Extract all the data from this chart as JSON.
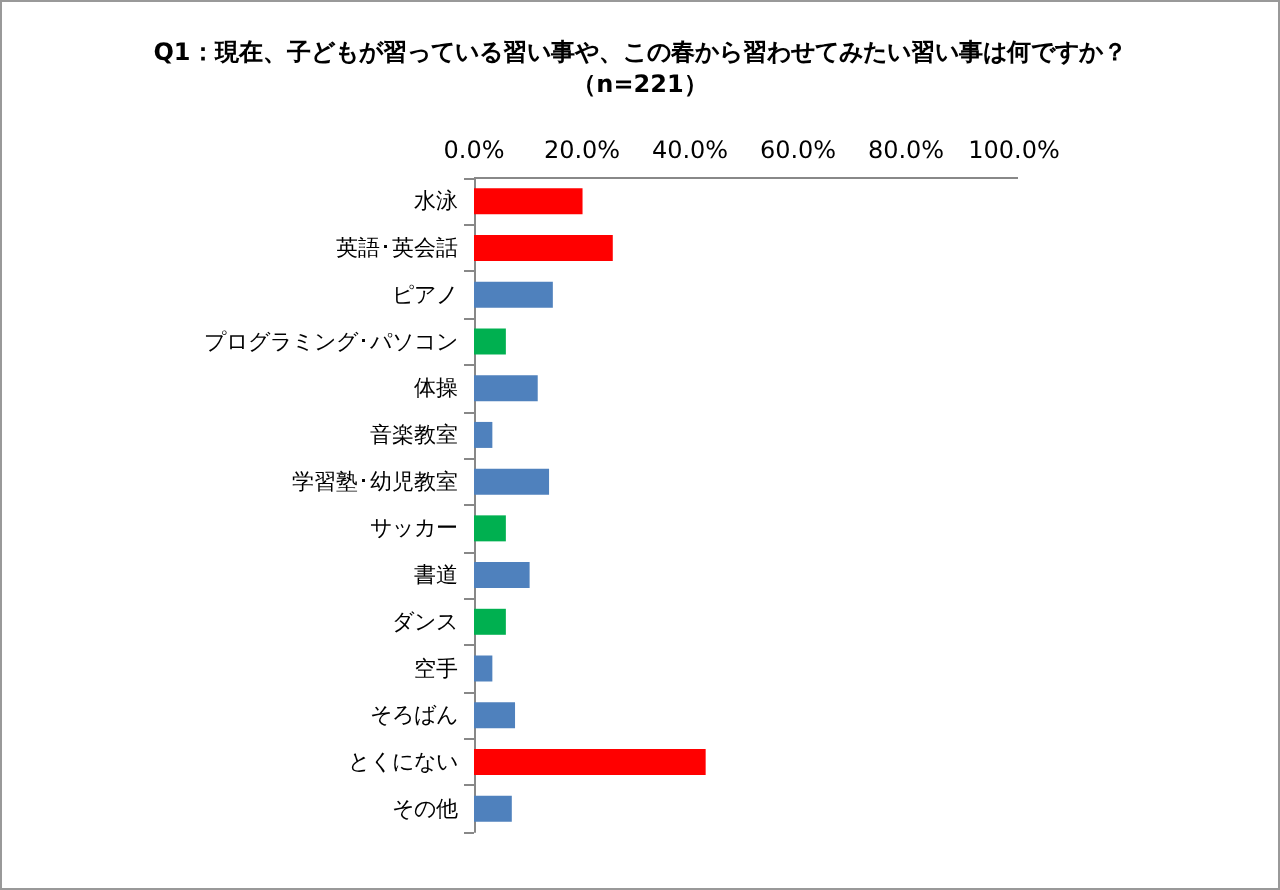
{
  "chart_data": {
    "type": "bar",
    "orientation": "horizontal",
    "title": "Q1：現在、子どもが習っている習い事や、この春から習わせてみたい習い事は何ですか？",
    "subtitle": "（n=221）",
    "categories": [
      "水泳",
      "英語･英会話",
      "ピアノ",
      "プログラミング･パソコン",
      "体操",
      "音楽教室",
      "学習塾･幼児教室",
      "サッカー",
      "書道",
      "ダンス",
      "空手",
      "そろばん",
      "とくにない",
      "その他"
    ],
    "values": [
      20.1,
      25.7,
      14.6,
      5.9,
      11.8,
      3.4,
      13.9,
      5.9,
      10.3,
      5.9,
      3.4,
      7.6,
      42.9,
      7.0
    ],
    "colors": [
      "#ff0000",
      "#ff0000",
      "#4f81bd",
      "#00b050",
      "#4f81bd",
      "#4f81bd",
      "#4f81bd",
      "#00b050",
      "#4f81bd",
      "#00b050",
      "#4f81bd",
      "#4f81bd",
      "#ff0000",
      "#4f81bd"
    ],
    "xlim": [
      0,
      100
    ],
    "xticks": [
      {
        "value": 0,
        "label": "0.0%"
      },
      {
        "value": 20,
        "label": "20.0%"
      },
      {
        "value": 40,
        "label": "40.0%"
      },
      {
        "value": 60,
        "label": "60.0%"
      },
      {
        "value": 80,
        "label": "80.0%"
      },
      {
        "value": 100,
        "label": "100.0%"
      }
    ],
    "grid": false
  }
}
